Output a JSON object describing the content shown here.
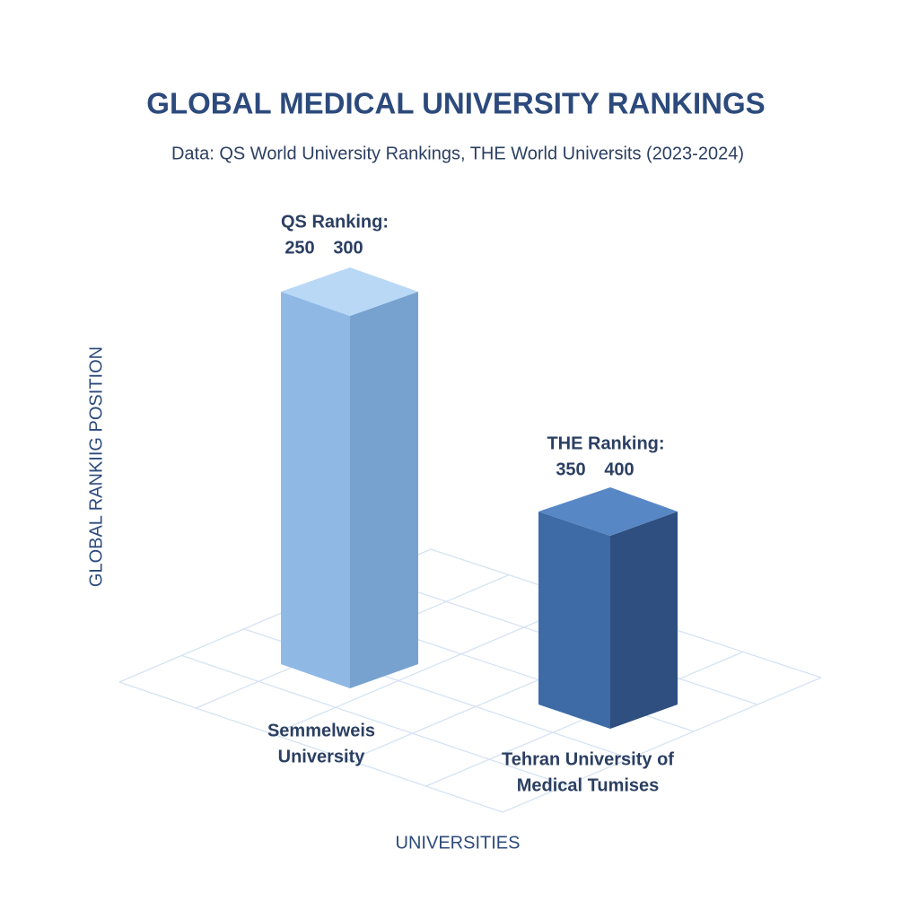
{
  "chart_data": {
    "type": "bar3d",
    "title": "GLOBAL MEDICAL UNIVERSITY RANKINGS",
    "subtitle": "Data: QS World University Rankings, THE World Universits (2023-2024)",
    "y_label": "GLOBAL RANKIIG POSITION",
    "x_label": "UNIVERSITIES",
    "categories": [
      [
        "Semmelweis",
        "University"
      ],
      [
        "Tehran University of",
        "Medical Tumises"
      ]
    ],
    "annotations": [
      {
        "label": "QS Ranking:",
        "range": [
          250,
          300
        ]
      },
      {
        "label": "THE Ranking:",
        "range": [
          350,
          400
        ]
      }
    ],
    "colors": [
      [
        "#b8d8f6",
        "#8fb9e4",
        "#77a2cf"
      ],
      [
        "#5787c5",
        "#3e6ba6",
        "#2e4f7f"
      ]
    ]
  }
}
